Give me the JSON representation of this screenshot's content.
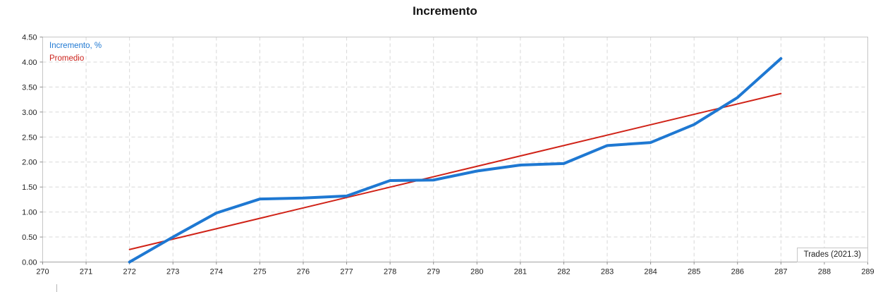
{
  "title": "Incremento",
  "footer_label": "Trades (2021.3)",
  "colors": {
    "background": "#ffffff",
    "grid": "#d8d8d8",
    "plot_border": "#c6c6c6",
    "axis_line": "#a3a3a3",
    "tick_mark": "#8f8f8f",
    "tick_text": "#222222",
    "title_text": "#141414",
    "series_blue": "#1e78d2",
    "series_red": "#d02318"
  },
  "legend": {
    "items": [
      {
        "label": "Incremento, %",
        "color": "#1e78d2"
      },
      {
        "label": "Promedio",
        "color": "#cc231c"
      }
    ]
  },
  "chart_data": {
    "type": "line",
    "title": "Incremento",
    "xlabel": "",
    "ylabel": "",
    "annotation": "Trades (2021.3)",
    "xlim": [
      270,
      289
    ],
    "ylim": [
      0,
      4.5
    ],
    "grid": true,
    "grid_style": "dashed",
    "legend_position": "top-left-inside",
    "x_ticks": [
      270,
      271,
      272,
      273,
      274,
      275,
      276,
      277,
      278,
      279,
      280,
      281,
      282,
      283,
      284,
      285,
      286,
      287,
      288,
      289
    ],
    "y_ticks": [
      0,
      0.5,
      1,
      1.5,
      2,
      2.5,
      3,
      3.5,
      4,
      4.5
    ],
    "y_tick_labels": [
      "0.00",
      "0.50",
      "1.00",
      "1.50",
      "2.00",
      "2.50",
      "3.00",
      "3.50",
      "4.00",
      "4.50"
    ],
    "series": [
      {
        "name": "Incremento, %",
        "color": "#1e78d2",
        "width": 4,
        "x": [
          272,
          273,
          274,
          275,
          276,
          277,
          278,
          279,
          280,
          281,
          282,
          283,
          284,
          285,
          286,
          287
        ],
        "y": [
          0,
          0.5,
          0.98,
          1.26,
          1.28,
          1.32,
          1.63,
          1.64,
          1.82,
          1.94,
          1.97,
          2.33,
          2.39,
          2.75,
          3.29,
          4.07
        ]
      },
      {
        "name": "Promedio",
        "color": "#d02318",
        "width": 2,
        "x": [
          272,
          287
        ],
        "y": [
          0.25,
          3.37
        ]
      }
    ]
  }
}
